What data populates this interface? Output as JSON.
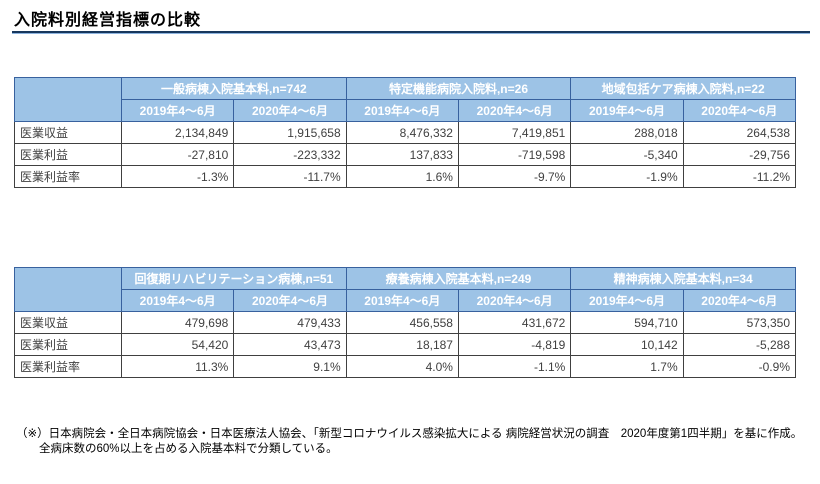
{
  "page": {
    "title": "入院料別経営指標の比較"
  },
  "colors": {
    "header_fill": "#9DC3E6",
    "header_text": "#FFFFFF",
    "header_border": "#38619E",
    "grid_border": "#404040",
    "data_text": "#404040",
    "title_rule_dark": "#17375D",
    "title_rule_light": "#8DB3DF"
  },
  "tables": [
    {
      "groups": [
        "一般病棟入院基本料,n=742",
        "特定機能病院入院料,n=26",
        "地域包括ケア病棟入院料,n=22"
      ],
      "period_headers": [
        "2019年4～6月",
        "2020年4～6月",
        "2019年4～6月",
        "2020年4～6月",
        "2019年4～6月",
        "2020年4～6月"
      ],
      "rows": [
        {
          "label": "医業収益",
          "values": [
            "2,134,849",
            "1,915,658",
            "8,476,332",
            "7,419,851",
            "288,018",
            "264,538"
          ]
        },
        {
          "label": "医業利益",
          "values": [
            "-27,810",
            "-223,332",
            "137,833",
            "-719,598",
            "-5,340",
            "-29,756"
          ]
        },
        {
          "label": "医業利益率",
          "values": [
            "-1.3%",
            "-11.7%",
            "1.6%",
            "-9.7%",
            "-1.9%",
            "-11.2%"
          ]
        }
      ]
    },
    {
      "groups": [
        "回復期リハビリテーション病棟,n=51",
        "療養病棟入院基本料,n=249",
        "精神病棟入院基本料,n=34"
      ],
      "period_headers": [
        "2019年4～6月",
        "2020年4～6月",
        "2019年4～6月",
        "2020年4～6月",
        "2019年4～6月",
        "2020年4～6月"
      ],
      "rows": [
        {
          "label": "医業収益",
          "values": [
            "479,698",
            "479,433",
            "456,558",
            "431,672",
            "594,710",
            "573,350"
          ]
        },
        {
          "label": "医業利益",
          "values": [
            "54,420",
            "43,473",
            "18,187",
            "-4,819",
            "10,142",
            "-5,288"
          ]
        },
        {
          "label": "医業利益率",
          "values": [
            "11.3%",
            "9.1%",
            "4.0%",
            "-1.1%",
            "1.7%",
            "-0.9%"
          ]
        }
      ]
    }
  ],
  "footnote": {
    "line1": "（※）日本病院会・全日本病院協会・日本医療法人協会、「新型コロナウイルス感染拡大による 病院経営状況の調査　2020年度第1四半期」を基に作成。",
    "line2": "全病床数の60%以上を占める入院基本料で分類している。"
  }
}
